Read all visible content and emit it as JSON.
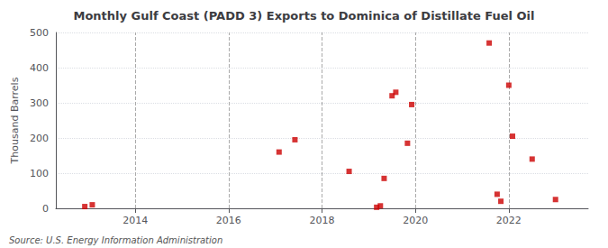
{
  "chart_data": {
    "type": "scatter",
    "title": "Monthly Gulf Coast (PADD 3) Exports to Dominica of Distillate Fuel Oil",
    "ylabel": "Thousand Barrels",
    "annotations": [
      "Source: U.S. Energy Information Administration"
    ],
    "x": [
      2012.92,
      2013.08,
      2017.08,
      2017.42,
      2018.58,
      2019.17,
      2019.25,
      2019.33,
      2019.5,
      2019.58,
      2019.83,
      2019.92,
      2021.58,
      2021.75,
      2021.83,
      2022.0,
      2022.08,
      2022.5,
      2023.0
    ],
    "values": [
      5,
      10,
      160,
      195,
      105,
      3,
      7,
      85,
      320,
      330,
      185,
      295,
      470,
      40,
      20,
      350,
      205,
      140,
      25
    ],
    "color": "#cc0000",
    "marker": "square",
    "xlim": [
      2012.3,
      2023.7
    ],
    "xticks": [
      2014,
      2016,
      2018,
      2020,
      2022
    ],
    "ylim": [
      0,
      500
    ],
    "yticks": [
      0,
      100,
      200,
      300,
      400,
      500
    ],
    "grid": true
  }
}
